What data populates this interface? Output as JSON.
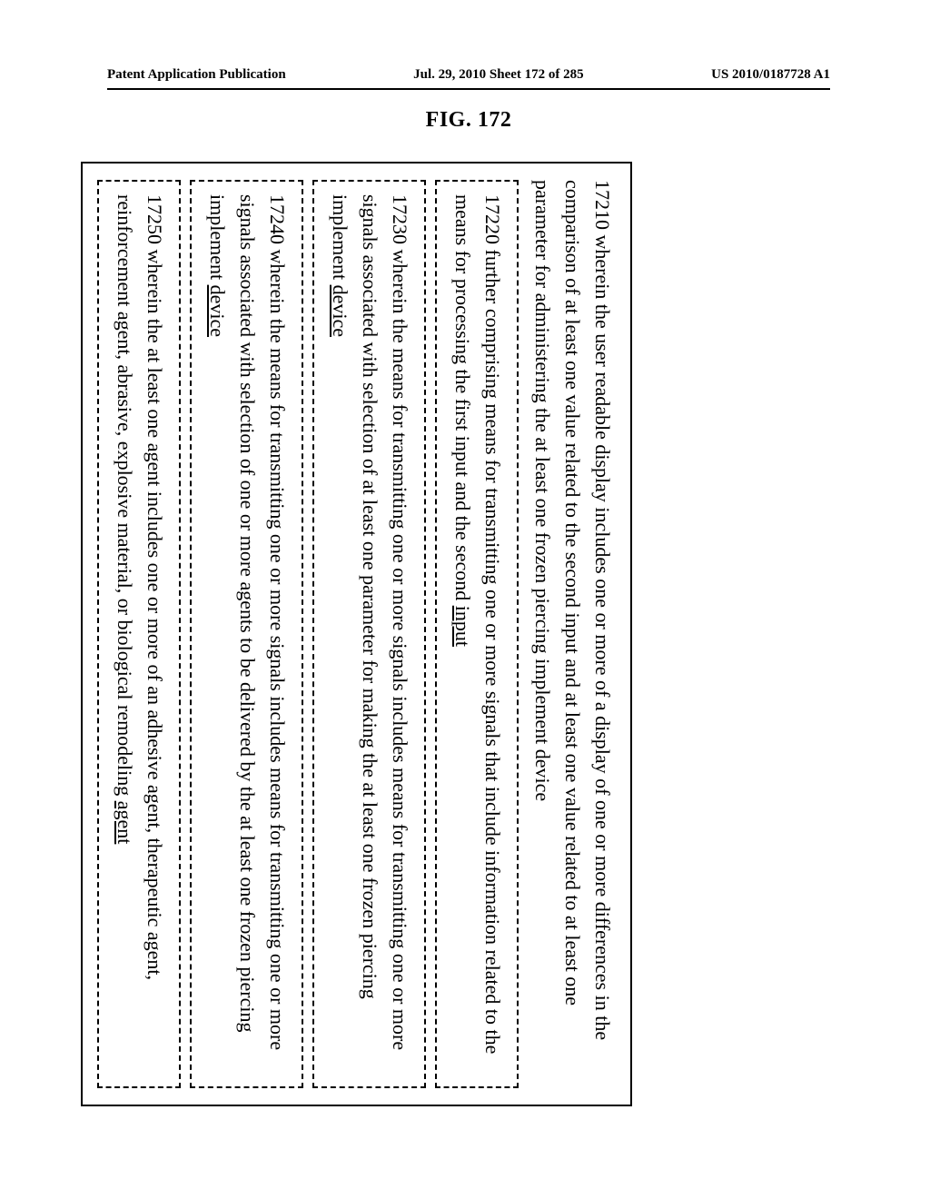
{
  "header": {
    "left": "Patent Application Publication",
    "center": "Jul. 29, 2010  Sheet 172 of 285",
    "right": "US 2010/0187728 A1"
  },
  "figure": {
    "title": "FIG. 172",
    "lead": {
      "num": "17210",
      "text": "  wherein the user readable display includes one or more of a display of one or more differences in the comparison of at least one value related to the second input and at least one value related to at least one parameter for administering the at least one frozen piercing implement device"
    },
    "rows": [
      {
        "num": "17220",
        "pre": " further comprising means for transmitting one or more signals that include information related to the means for processing the first input and the second ",
        "u": "input",
        "post": ""
      },
      {
        "num": "17230",
        "pre": " wherein the means for transmitting one or more signals includes means for transmitting one or more signals associated with selection of at least one parameter for making the at least one frozen piercing implement ",
        "u": "device",
        "post": ""
      },
      {
        "num": "17240",
        "pre": " wherein the means for transmitting one or more signals includes means for transmitting one or more signals associated with selection of one or more agents to be delivered by the at least one frozen piercing implement ",
        "u": "device",
        "post": ""
      },
      {
        "num": "17250",
        "pre": " wherein the at least one agent includes one or more of an adhesive agent, therapeutic agent, reinforcement agent, abrasive, explosive material, or biological remodeling ",
        "u": "agent",
        "post": ""
      }
    ]
  },
  "style": {
    "background": "#ffffff",
    "border_color": "#000000",
    "font_family": "Times New Roman",
    "lead_fontsize": 22,
    "row_fontsize": 22,
    "title_fontsize": 24,
    "header_fontsize": 15,
    "border_width": 2.5,
    "dash_pattern": "dashed"
  }
}
